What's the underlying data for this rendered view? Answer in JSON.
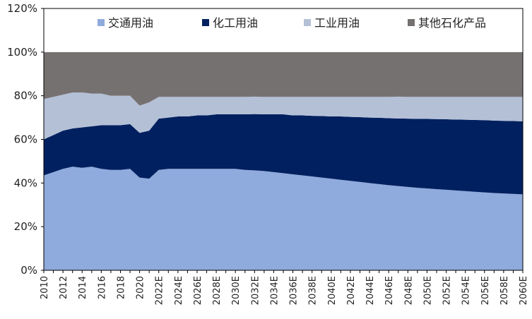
{
  "chart_data": {
    "type": "area",
    "stacked": true,
    "x": [
      "2010",
      "2011",
      "2012",
      "2013",
      "2014",
      "2015",
      "2016",
      "2017",
      "2018",
      "2019",
      "2020",
      "2021",
      "2022E",
      "2023E",
      "2024E",
      "2025E",
      "2026E",
      "2027E",
      "2028E",
      "2029E",
      "2030E",
      "2031E",
      "2032E",
      "2033E",
      "2034E",
      "2035E",
      "2036E",
      "2037E",
      "2038E",
      "2039E",
      "2040E",
      "2041E",
      "2042E",
      "2043E",
      "2044E",
      "2045E",
      "2046E",
      "2047E",
      "2048E",
      "2049E",
      "2050E",
      "2051E",
      "2052E",
      "2053E",
      "2054E",
      "2055E",
      "2056E",
      "2057E",
      "2058E",
      "2059E",
      "2060E"
    ],
    "x_tick_labels": [
      "2010",
      "2012",
      "2014",
      "2016",
      "2018",
      "2020",
      "2022E",
      "2024E",
      "2026E",
      "2028E",
      "2030E",
      "2032E",
      "2034E",
      "2036E",
      "2038E",
      "2040E",
      "2042E",
      "2044E",
      "2046E",
      "2048E",
      "2050E",
      "2052E",
      "2054E",
      "2056E",
      "2058E",
      "2060E"
    ],
    "y_tick_labels": [
      "0%",
      "20%",
      "40%",
      "60%",
      "80%",
      "100%",
      "120%"
    ],
    "ylim": [
      0,
      120
    ],
    "series": [
      {
        "name": "交通用油",
        "color": "#8faadc",
        "values": [
          43.5,
          45,
          46.5,
          47.5,
          47,
          47.5,
          46.5,
          46,
          46,
          46.5,
          42.5,
          42,
          46,
          46.5,
          46.5,
          46.5,
          46.5,
          46.5,
          46.5,
          46.5,
          46.5,
          46,
          45.8,
          45.5,
          45,
          44.5,
          44,
          43.5,
          43,
          42.5,
          42,
          41.5,
          41,
          40.5,
          40,
          39.5,
          39,
          38.6,
          38.2,
          37.8,
          37.5,
          37.2,
          36.9,
          36.6,
          36.3,
          36,
          35.7,
          35.4,
          35.2,
          35,
          34.8
        ]
      },
      {
        "name": "化工用油",
        "color": "#002060",
        "values": [
          16.5,
          17,
          17.5,
          17.5,
          18.5,
          18.5,
          20,
          20.5,
          20.5,
          20.5,
          20.5,
          22,
          23.5,
          23.5,
          24,
          24,
          24.5,
          24.5,
          25,
          25,
          25,
          25.5,
          25.8,
          26,
          26.5,
          27,
          27,
          27.5,
          27.8,
          28.2,
          28.5,
          29,
          29.3,
          29.7,
          30,
          30.4,
          30.7,
          31,
          31.3,
          31.6,
          31.9,
          32.1,
          32.3,
          32.5,
          32.7,
          32.9,
          33.1,
          33.2,
          33.3,
          33.4,
          33.5
        ]
      },
      {
        "name": "工业用油",
        "color": "#b4c0d6",
        "values": [
          18.5,
          17.5,
          16.5,
          16.5,
          16,
          15,
          14.5,
          13.5,
          13.5,
          13,
          12.5,
          13,
          10,
          9.5,
          9,
          9,
          8.5,
          8.5,
          8,
          8,
          8,
          8,
          8,
          8,
          8,
          8,
          8.5,
          8.5,
          8.7,
          8.8,
          9,
          9,
          9.2,
          9.3,
          9.5,
          9.6,
          9.8,
          10,
          10,
          10.1,
          10.1,
          10.2,
          10.3,
          10.4,
          10.5,
          10.6,
          10.7,
          10.9,
          11,
          11.1,
          11.2
        ]
      },
      {
        "name": "其他石化产品",
        "color": "#767171",
        "values": [
          21.5,
          20.5,
          19.5,
          18.5,
          18.5,
          19,
          19,
          20,
          20,
          20,
          24.5,
          23,
          20.5,
          20.5,
          20.5,
          20.5,
          20.5,
          20.5,
          20.5,
          20.5,
          20.5,
          20.5,
          20.4,
          20.5,
          20.5,
          20.5,
          20.5,
          20.5,
          20.5,
          20.5,
          20.5,
          20.5,
          20.5,
          20.5,
          20.5,
          20.5,
          20.5,
          20.4,
          20.5,
          20.5,
          20.5,
          20.5,
          20.5,
          20.5,
          20.5,
          20.5,
          20.5,
          20.5,
          20.5,
          20.5,
          20.5
        ]
      }
    ],
    "legend_position": "top"
  }
}
